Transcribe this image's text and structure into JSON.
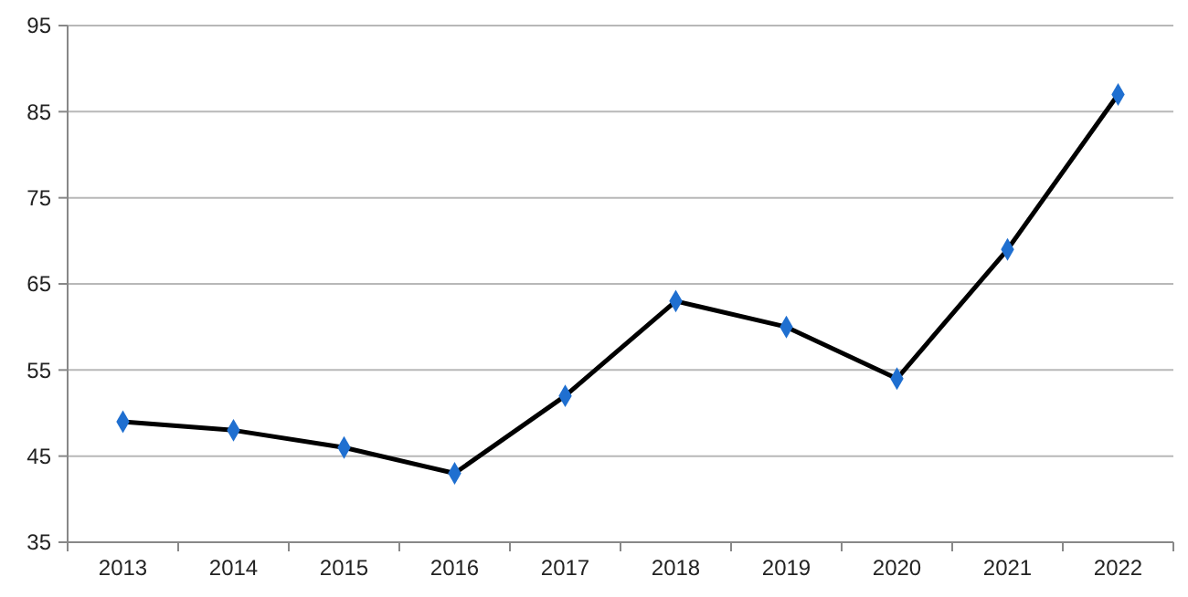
{
  "chart_data": {
    "type": "line",
    "categories": [
      "2013",
      "2014",
      "2015",
      "2016",
      "2017",
      "2018",
      "2019",
      "2020",
      "2021",
      "2022"
    ],
    "series": [
      {
        "color": "#000000",
        "values": [
          49,
          48,
          46,
          43,
          52,
          63,
          60,
          54,
          69,
          87
        ]
      }
    ],
    "ylim": [
      35,
      95
    ],
    "yticks": [
      35,
      45,
      55,
      65,
      75,
      85,
      95
    ],
    "grid": "y",
    "marker": "diamond",
    "line_style": "solid"
  }
}
